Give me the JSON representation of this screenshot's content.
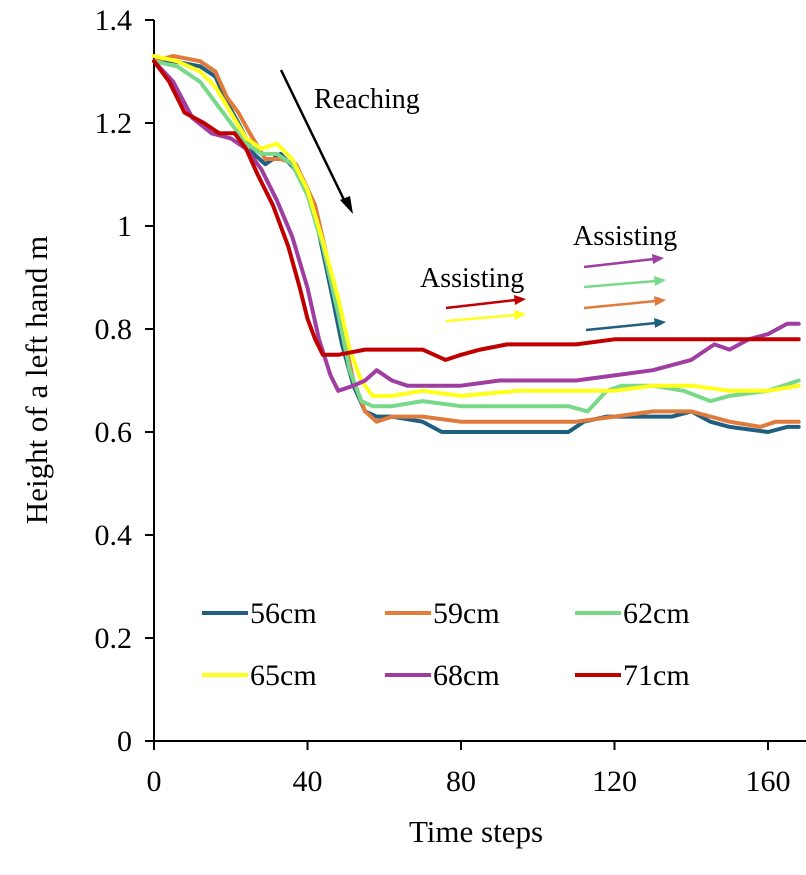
{
  "chart_data": {
    "type": "line",
    "xlabel": "Time steps",
    "ylabel": "Height of a left hand  m",
    "xlim": [
      0,
      168
    ],
    "ylim": [
      0,
      1.4
    ],
    "x_ticks": [
      "0",
      "40",
      "80",
      "120",
      "160"
    ],
    "y_ticks": [
      "0",
      "0.2",
      "0.4",
      "0.6",
      "0.8",
      "1",
      "1.2",
      "1.4"
    ],
    "grid": false,
    "legend_position": "bottom",
    "series": [
      {
        "name": "56cm",
        "color": "#1f5f80",
        "points": [
          [
            0,
            1.32
          ],
          [
            5,
            1.32
          ],
          [
            12,
            1.31
          ],
          [
            16,
            1.29
          ],
          [
            19,
            1.24
          ],
          [
            22,
            1.2
          ],
          [
            26,
            1.14
          ],
          [
            29,
            1.12
          ],
          [
            33,
            1.14
          ],
          [
            38,
            1.1
          ],
          [
            42,
            1.02
          ],
          [
            46,
            0.88
          ],
          [
            49,
            0.77
          ],
          [
            52,
            0.69
          ],
          [
            55,
            0.64
          ],
          [
            58,
            0.63
          ],
          [
            62,
            0.63
          ],
          [
            70,
            0.62
          ],
          [
            75,
            0.6
          ],
          [
            85,
            0.6
          ],
          [
            95,
            0.6
          ],
          [
            108,
            0.6
          ],
          [
            112,
            0.62
          ],
          [
            118,
            0.63
          ],
          [
            125,
            0.63
          ],
          [
            135,
            0.63
          ],
          [
            140,
            0.64
          ],
          [
            145,
            0.62
          ],
          [
            150,
            0.61
          ],
          [
            160,
            0.6
          ],
          [
            165,
            0.61
          ],
          [
            168,
            0.61
          ]
        ]
      },
      {
        "name": "59cm",
        "color": "#e07b3c",
        "points": [
          [
            0,
            1.32
          ],
          [
            5,
            1.33
          ],
          [
            12,
            1.32
          ],
          [
            16,
            1.3
          ],
          [
            19,
            1.25
          ],
          [
            22,
            1.22
          ],
          [
            25,
            1.18
          ],
          [
            29,
            1.13
          ],
          [
            33,
            1.13
          ],
          [
            37,
            1.12
          ],
          [
            42,
            1.04
          ],
          [
            46,
            0.91
          ],
          [
            49,
            0.8
          ],
          [
            52,
            0.7
          ],
          [
            55,
            0.64
          ],
          [
            58,
            0.62
          ],
          [
            62,
            0.63
          ],
          [
            70,
            0.63
          ],
          [
            80,
            0.62
          ],
          [
            95,
            0.62
          ],
          [
            110,
            0.62
          ],
          [
            120,
            0.63
          ],
          [
            130,
            0.64
          ],
          [
            140,
            0.64
          ],
          [
            150,
            0.62
          ],
          [
            158,
            0.61
          ],
          [
            162,
            0.62
          ],
          [
            168,
            0.62
          ]
        ]
      },
      {
        "name": "62cm",
        "color": "#79d98a",
        "points": [
          [
            0,
            1.32
          ],
          [
            6,
            1.31
          ],
          [
            12,
            1.28
          ],
          [
            16,
            1.24
          ],
          [
            20,
            1.2
          ],
          [
            24,
            1.16
          ],
          [
            28,
            1.14
          ],
          [
            32,
            1.14
          ],
          [
            36,
            1.12
          ],
          [
            40,
            1.06
          ],
          [
            44,
            0.96
          ],
          [
            48,
            0.83
          ],
          [
            51,
            0.72
          ],
          [
            54,
            0.66
          ],
          [
            57,
            0.65
          ],
          [
            62,
            0.65
          ],
          [
            70,
            0.66
          ],
          [
            80,
            0.65
          ],
          [
            95,
            0.65
          ],
          [
            108,
            0.65
          ],
          [
            113,
            0.64
          ],
          [
            118,
            0.68
          ],
          [
            122,
            0.69
          ],
          [
            130,
            0.69
          ],
          [
            138,
            0.68
          ],
          [
            145,
            0.66
          ],
          [
            150,
            0.67
          ],
          [
            160,
            0.68
          ],
          [
            168,
            0.7
          ]
        ]
      },
      {
        "name": "65cm",
        "color": "#ffff1a",
        "points": [
          [
            0,
            1.33
          ],
          [
            6,
            1.32
          ],
          [
            12,
            1.3
          ],
          [
            16,
            1.27
          ],
          [
            20,
            1.22
          ],
          [
            24,
            1.17
          ],
          [
            28,
            1.15
          ],
          [
            32,
            1.16
          ],
          [
            36,
            1.13
          ],
          [
            40,
            1.07
          ],
          [
            44,
            0.97
          ],
          [
            48,
            0.86
          ],
          [
            51,
            0.76
          ],
          [
            54,
            0.7
          ],
          [
            57,
            0.67
          ],
          [
            62,
            0.67
          ],
          [
            70,
            0.68
          ],
          [
            80,
            0.67
          ],
          [
            95,
            0.68
          ],
          [
            108,
            0.68
          ],
          [
            120,
            0.68
          ],
          [
            130,
            0.69
          ],
          [
            140,
            0.69
          ],
          [
            150,
            0.68
          ],
          [
            160,
            0.68
          ],
          [
            168,
            0.69
          ]
        ]
      },
      {
        "name": "68cm",
        "color": "#a03da0",
        "points": [
          [
            0,
            1.32
          ],
          [
            5,
            1.28
          ],
          [
            10,
            1.21
          ],
          [
            15,
            1.18
          ],
          [
            20,
            1.17
          ],
          [
            24,
            1.15
          ],
          [
            28,
            1.11
          ],
          [
            32,
            1.05
          ],
          [
            36,
            0.98
          ],
          [
            40,
            0.88
          ],
          [
            43,
            0.78
          ],
          [
            46,
            0.71
          ],
          [
            48,
            0.68
          ],
          [
            52,
            0.69
          ],
          [
            55,
            0.7
          ],
          [
            58,
            0.72
          ],
          [
            62,
            0.7
          ],
          [
            66,
            0.69
          ],
          [
            80,
            0.69
          ],
          [
            90,
            0.7
          ],
          [
            100,
            0.7
          ],
          [
            110,
            0.7
          ],
          [
            120,
            0.71
          ],
          [
            130,
            0.72
          ],
          [
            140,
            0.74
          ],
          [
            146,
            0.77
          ],
          [
            150,
            0.76
          ],
          [
            155,
            0.78
          ],
          [
            160,
            0.79
          ],
          [
            165,
            0.81
          ],
          [
            168,
            0.81
          ]
        ]
      },
      {
        "name": "71cm",
        "color": "#c00000",
        "points": [
          [
            0,
            1.32
          ],
          [
            4,
            1.28
          ],
          [
            8,
            1.22
          ],
          [
            13,
            1.2
          ],
          [
            17,
            1.18
          ],
          [
            21,
            1.18
          ],
          [
            24,
            1.15
          ],
          [
            27,
            1.1
          ],
          [
            31,
            1.04
          ],
          [
            35,
            0.96
          ],
          [
            38,
            0.88
          ],
          [
            40,
            0.82
          ],
          [
            42,
            0.78
          ],
          [
            44,
            0.75
          ],
          [
            48,
            0.75
          ],
          [
            55,
            0.76
          ],
          [
            62,
            0.76
          ],
          [
            70,
            0.76
          ],
          [
            76,
            0.74
          ],
          [
            80,
            0.75
          ],
          [
            85,
            0.76
          ],
          [
            92,
            0.77
          ],
          [
            100,
            0.77
          ],
          [
            110,
            0.77
          ],
          [
            120,
            0.78
          ],
          [
            130,
            0.78
          ],
          [
            140,
            0.78
          ],
          [
            150,
            0.78
          ],
          [
            160,
            0.78
          ],
          [
            168,
            0.78
          ]
        ]
      }
    ],
    "annotations": {
      "reaching": "Reaching",
      "assisting_1": "Assisting",
      "assisting_2": "Assisting"
    }
  }
}
